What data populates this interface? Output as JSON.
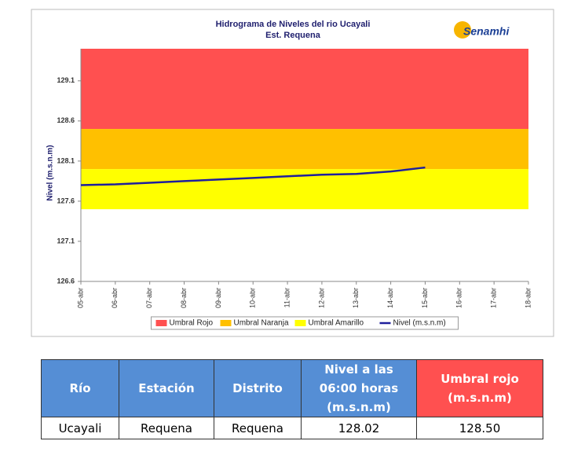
{
  "chart_data": {
    "type": "line",
    "title": "Hidrograma de Niveles del rio Ucayali",
    "subtitle": "Est. Requena",
    "logo": "Senamhi",
    "ylabel": "Nivel (m.s.n.m)",
    "categories": [
      "05-abr",
      "06-abr",
      "07-abr",
      "08-abr",
      "09-abr",
      "10-abr",
      "11-abr",
      "12-abr",
      "13-abr",
      "14-abr",
      "15-abr",
      "16-abr",
      "17-abr",
      "18-abr"
    ],
    "bands": [
      {
        "name": "Umbral Rojo",
        "color": "#ff5050",
        "from": 128.5,
        "to": 129.5
      },
      {
        "name": "Umbral Naranja",
        "color": "#ffc000",
        "from": 128.0,
        "to": 128.5
      },
      {
        "name": "Umbral Amarillo",
        "color": "#ffff00",
        "from": 127.5,
        "to": 128.0
      }
    ],
    "series": [
      {
        "name": "Nivel (m.s.n.m)",
        "color": "#1f1f9c",
        "values": [
          127.8,
          127.81,
          127.83,
          127.85,
          127.87,
          127.89,
          127.91,
          127.93,
          127.94,
          127.97,
          128.02,
          null,
          null,
          null
        ]
      }
    ],
    "ylim": [
      126.6,
      129.5
    ],
    "yticks": [
      126.6,
      127.1,
      127.6,
      128.1,
      128.6,
      129.1
    ],
    "legend": "bottom"
  },
  "table": {
    "header": [
      "Río",
      "Estación",
      "Distrito",
      "Nivel a las 06:00 horas (m.s.n.m)",
      "Umbral rojo (m.s.n.m)"
    ],
    "rows": [
      [
        "Ucayali",
        "Requena",
        "Requena",
        "128.02",
        "128.50"
      ]
    ]
  }
}
